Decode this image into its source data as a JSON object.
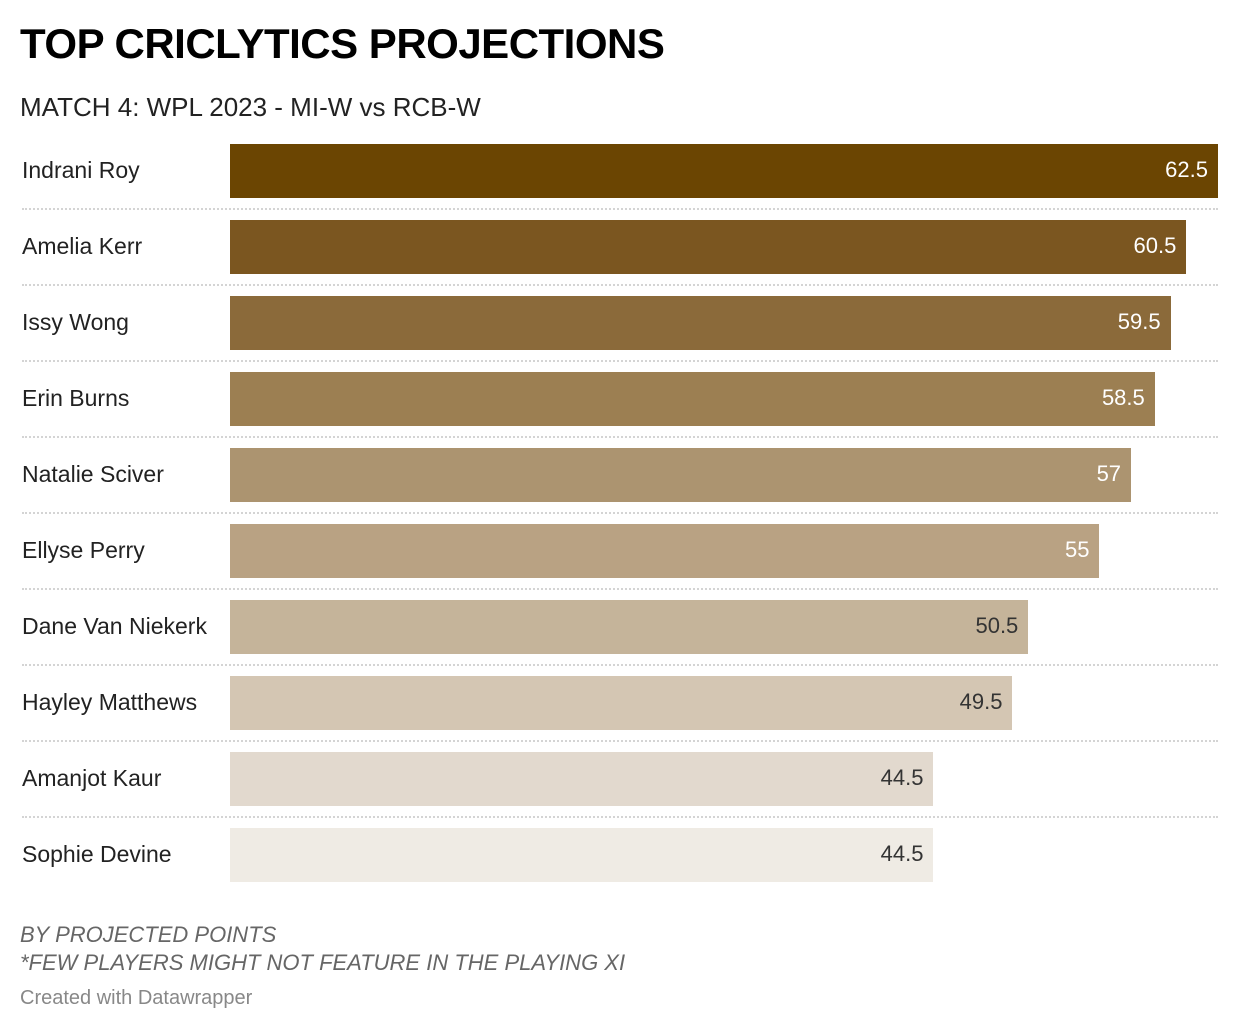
{
  "header": {
    "title": "TOP CRICLYTICS PROJECTIONS",
    "subtitle": "MATCH 4: WPL 2023 - MI-W vs RCB-W"
  },
  "footer": {
    "note_1": "BY PROJECTED POINTS",
    "note_2": "*FEW PLAYERS MIGHT NOT FEATURE IN THE PLAYING XI",
    "credit": "Created with Datawrapper"
  },
  "chart_data": {
    "type": "bar",
    "orientation": "horizontal",
    "title": "TOP CRICLYTICS PROJECTIONS",
    "subtitle": "MATCH 4: WPL 2023 - MI-W vs RCB-W",
    "xlabel": "",
    "ylabel": "",
    "xlim": [
      0,
      62.5
    ],
    "grid": false,
    "categories": [
      "Indrani Roy",
      "Amelia Kerr",
      "Issy Wong",
      "Erin Burns",
      "Natalie Sciver",
      "Ellyse Perry",
      "Dane Van Niekerk",
      "Hayley Matthews",
      "Amanjot Kaur",
      "Sophie Devine"
    ],
    "values": [
      62.5,
      60.5,
      59.5,
      58.5,
      57,
      55,
      50.5,
      49.5,
      44.5,
      44.5
    ],
    "value_labels": [
      "62.5",
      "60.5",
      "59.5",
      "58.5",
      "57",
      "55",
      "50.5",
      "49.5",
      "44.5",
      "44.5"
    ],
    "bar_colors": [
      "#6b4502",
      "#7b5620",
      "#8b6a3a",
      "#9c7f52",
      "#ac9470",
      "#b9a283",
      "#c5b49a",
      "#d4c6b3",
      "#e2d9ce",
      "#efebe4"
    ],
    "label_colors": [
      "#ffffff",
      "#ffffff",
      "#ffffff",
      "#ffffff",
      "#ffffff",
      "#ffffff",
      "#333333",
      "#333333",
      "#333333",
      "#333333"
    ]
  }
}
